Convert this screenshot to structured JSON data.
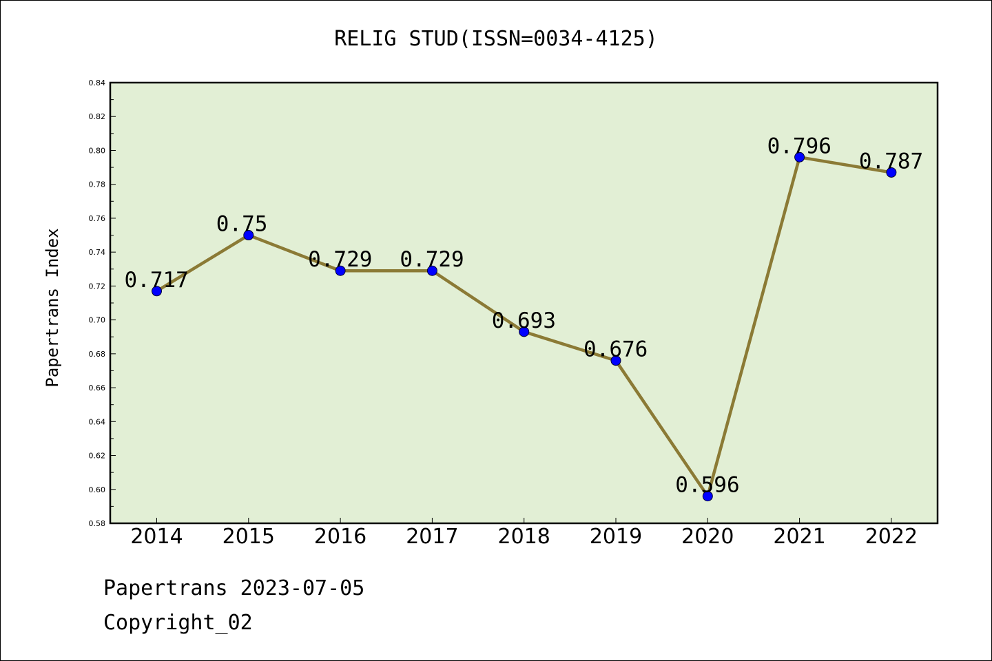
{
  "chart_data": {
    "type": "line",
    "title": "RELIG STUD(ISSN=0034-4125)",
    "xlabel": "",
    "ylabel": "Papertrans Index",
    "categories": [
      "2014",
      "2015",
      "2016",
      "2017",
      "2018",
      "2019",
      "2020",
      "2021",
      "2022"
    ],
    "values": [
      0.717,
      0.75,
      0.729,
      0.729,
      0.693,
      0.676,
      0.596,
      0.796,
      0.787
    ],
    "data_labels": [
      "0.717",
      "0.75",
      "0.729",
      "0.729",
      "0.693",
      "0.676",
      "0.596",
      "0.796",
      "0.787"
    ],
    "ylim": [
      0.58,
      0.84
    ],
    "yticks": [
      "0.58",
      "0.60",
      "0.62",
      "0.64",
      "0.66",
      "0.68",
      "0.70",
      "0.72",
      "0.74",
      "0.76",
      "0.78",
      "0.80",
      "0.82",
      "0.84"
    ],
    "grid": false,
    "colors": {
      "plot_background": "#e2efd5",
      "line": "#8b7a35",
      "marker": "#0000ff"
    }
  },
  "footer": {
    "line1": "Papertrans 2023-07-05",
    "line2": "Copyright_02"
  }
}
